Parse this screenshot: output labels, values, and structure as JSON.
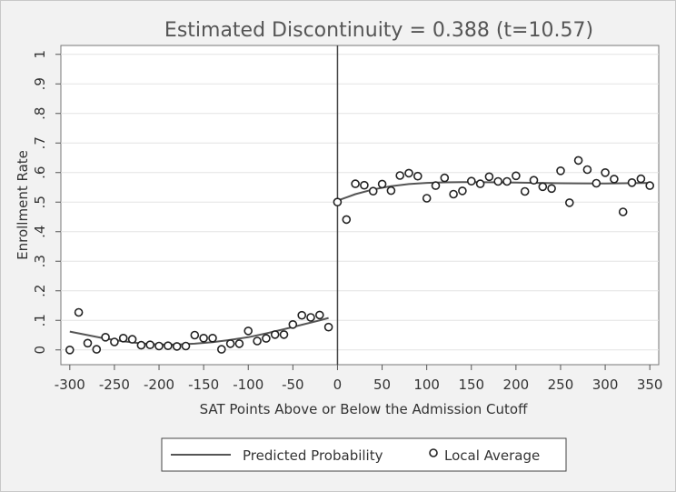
{
  "chart_data": {
    "type": "scatter",
    "title": "Estimated Discontinuity = 0.388 (t=10.57)",
    "xlabel": "SAT Points Above or Below the Admission Cutoff",
    "ylabel": "Enrollment Rate",
    "xlim": [
      -310,
      360
    ],
    "ylim": [
      -0.05,
      1.03
    ],
    "xticks": [
      -300,
      -250,
      -200,
      -150,
      -100,
      -50,
      0,
      50,
      100,
      150,
      200,
      250,
      300,
      350
    ],
    "xtick_labels": [
      "-300",
      "-250",
      "-200",
      "-150",
      "-100",
      "-50",
      "0",
      "50",
      "100",
      "150",
      "200",
      "250",
      "300",
      "350"
    ],
    "yticks": [
      0,
      0.1,
      0.2,
      0.3,
      0.4,
      0.5,
      0.6,
      0.7,
      0.8,
      0.9,
      1
    ],
    "ytick_labels": [
      "0",
      ".1",
      ".2",
      ".3",
      ".4",
      ".5",
      ".6",
      ".7",
      ".8",
      ".9",
      "1"
    ],
    "grid": true,
    "cutoff": 0,
    "legend_position": "bottom",
    "series": [
      {
        "name": "Predicted Probability",
        "kind": "line",
        "color": "#555555",
        "segments": [
          {
            "x": [
              -300,
              -280,
              -260,
              -240,
              -220,
              -200,
              -180,
              -160,
              -140,
              -120,
              -100,
              -80,
              -60,
              -40,
              -20,
              -10
            ],
            "y": [
              0.062,
              0.05,
              0.038,
              0.029,
              0.022,
              0.018,
              0.018,
              0.021,
              0.026,
              0.034,
              0.043,
              0.056,
              0.07,
              0.085,
              0.1,
              0.108
            ]
          },
          {
            "x": [
              0,
              20,
              40,
              60,
              80,
              100,
              120,
              150,
              180,
              200,
              250,
              300,
              350
            ],
            "y": [
              0.505,
              0.527,
              0.543,
              0.554,
              0.561,
              0.565,
              0.567,
              0.568,
              0.567,
              0.566,
              0.564,
              0.563,
              0.565
            ]
          }
        ]
      },
      {
        "name": "Local Average",
        "kind": "points",
        "color": "#222222",
        "x": [
          -300,
          -290,
          -280,
          -270,
          -260,
          -250,
          -240,
          -230,
          -220,
          -210,
          -200,
          -190,
          -180,
          -170,
          -160,
          -150,
          -140,
          -130,
          -120,
          -110,
          -100,
          -90,
          -80,
          -70,
          -60,
          -50,
          -40,
          -30,
          -20,
          -10,
          0,
          10,
          20,
          30,
          40,
          50,
          60,
          70,
          80,
          90,
          100,
          110,
          120,
          130,
          140,
          150,
          160,
          170,
          180,
          190,
          200,
          210,
          220,
          230,
          240,
          250,
          260,
          270,
          280,
          290,
          300,
          310,
          320,
          330,
          340,
          350
        ],
        "y": [
          0.0,
          0.127,
          0.023,
          0.002,
          0.043,
          0.027,
          0.04,
          0.036,
          0.016,
          0.017,
          0.013,
          0.014,
          0.012,
          0.013,
          0.05,
          0.04,
          0.04,
          0.002,
          0.021,
          0.021,
          0.064,
          0.03,
          0.039,
          0.052,
          0.052,
          0.086,
          0.117,
          0.11,
          0.118,
          0.077,
          0.5,
          0.441,
          0.562,
          0.557,
          0.537,
          0.561,
          0.539,
          0.59,
          0.598,
          0.588,
          0.513,
          0.556,
          0.582,
          0.527,
          0.538,
          0.571,
          0.562,
          0.586,
          0.57,
          0.57,
          0.589,
          0.536,
          0.574,
          0.552,
          0.546,
          0.606,
          0.498,
          0.641,
          0.61,
          0.564,
          0.6,
          0.578,
          0.467,
          0.566,
          0.579,
          0.556
        ]
      }
    ]
  }
}
